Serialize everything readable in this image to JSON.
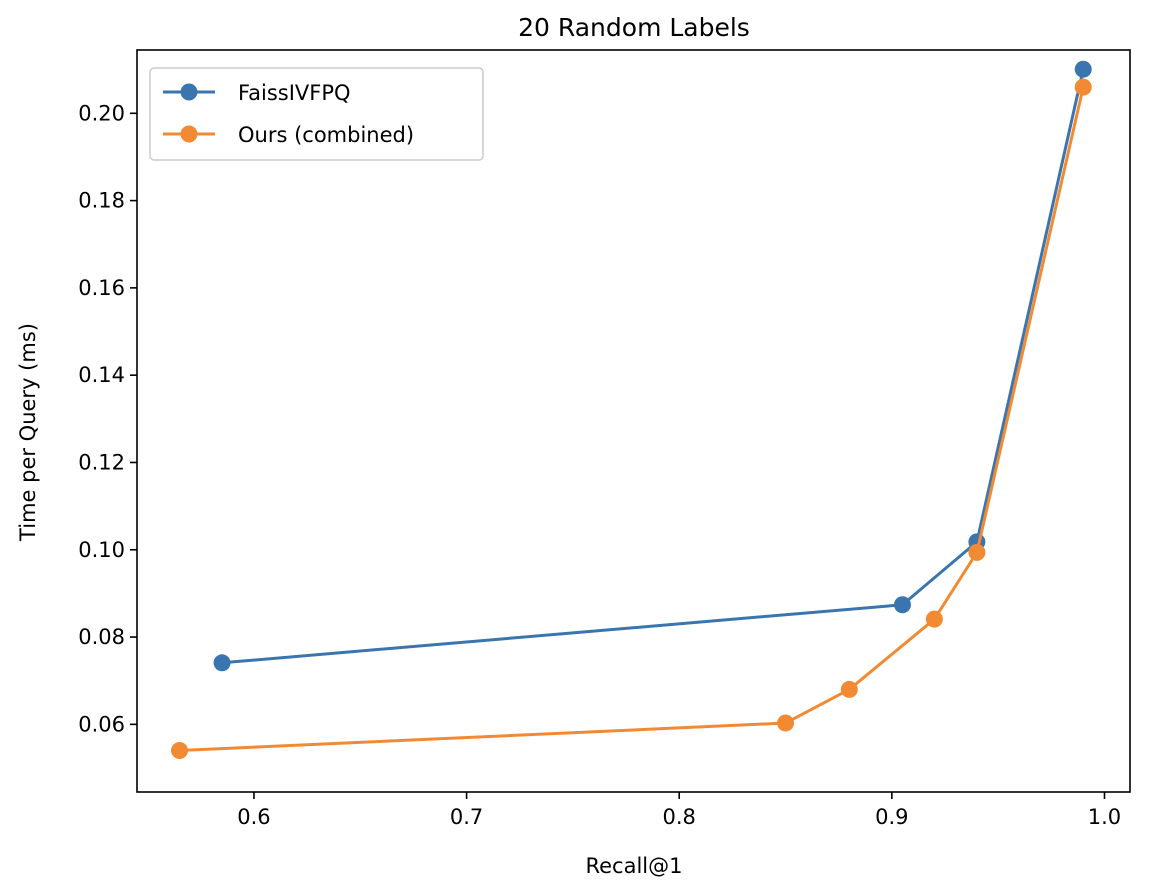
{
  "chart_data": {
    "type": "line",
    "title": "20 Random Labels",
    "xlabel": "Recall@1",
    "ylabel": "Time per Query (ms)",
    "xlim": [
      0.545,
      1.012
    ],
    "ylim": [
      0.0445,
      0.2145
    ],
    "xticks": [
      0.6,
      0.7,
      0.8,
      0.9,
      1.0
    ],
    "xtick_labels": [
      "0.6",
      "0.7",
      "0.8",
      "0.9",
      "1.0"
    ],
    "yticks": [
      0.06,
      0.08,
      0.1,
      0.12,
      0.14,
      0.16,
      0.18,
      0.2
    ],
    "ytick_labels": [
      "0.06",
      "0.08",
      "0.10",
      "0.12",
      "0.14",
      "0.16",
      "0.18",
      "0.20"
    ],
    "grid": false,
    "legend_position": "top-left",
    "series": [
      {
        "name": "FaissIVFPQ",
        "color": "#3a75b0",
        "marker": "circle",
        "x": [
          0.585,
          0.905,
          0.94,
          0.99
        ],
        "y": [
          0.0741,
          0.0874,
          0.1018,
          0.2101
        ]
      },
      {
        "name": "Ours (combined)",
        "color": "#f28a33",
        "marker": "circle",
        "x": [
          0.565,
          0.85,
          0.88,
          0.92,
          0.94,
          0.99
        ],
        "y": [
          0.054,
          0.0603,
          0.068,
          0.0841,
          0.0994,
          0.206
        ]
      }
    ]
  }
}
